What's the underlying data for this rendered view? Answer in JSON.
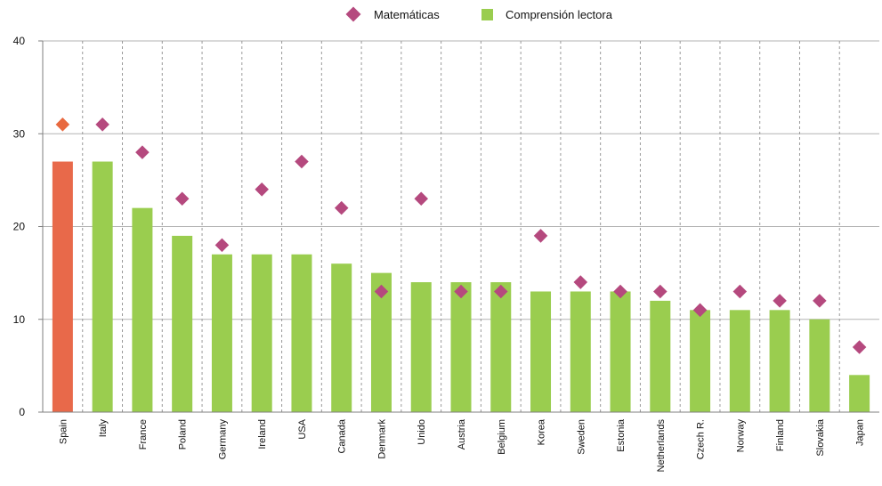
{
  "chart_data": {
    "type": "bar",
    "title": "",
    "xlabel": "",
    "ylabel": "",
    "ylim": [
      0,
      40
    ],
    "yticks": [
      0,
      10,
      20,
      30,
      40
    ],
    "grid": true,
    "legend_position": "top",
    "categories": [
      "Spain",
      "Italy",
      "France",
      "Poland",
      "Germany",
      "Ireland",
      "USA",
      "Canada",
      "Denmark",
      "Unido",
      "Austria",
      "Belgium",
      "Korea",
      "Sweden",
      "Estonia",
      "Netherlands",
      "Czech R.",
      "Norway",
      "Finland",
      "Slovakia",
      "Japan"
    ],
    "highlight_category": "Spain",
    "series": [
      {
        "name": "Matemáticas",
        "type": "scatter",
        "marker": "diamond",
        "color": "#b5497e",
        "highlight_color": "#e8693f",
        "values": [
          31,
          31,
          28,
          23,
          18,
          24,
          27,
          22,
          13,
          23,
          13,
          13,
          19,
          14,
          13,
          13,
          11,
          13,
          12,
          12,
          7
        ]
      },
      {
        "name": "Comprensión lectora",
        "type": "bar",
        "color": "#9acd4f",
        "highlight_color": "#e8694a",
        "values": [
          27,
          27,
          22,
          19,
          17,
          17,
          17,
          16,
          15,
          14,
          14,
          14,
          13,
          13,
          13,
          12,
          11,
          11,
          11,
          10,
          4
        ]
      }
    ]
  }
}
